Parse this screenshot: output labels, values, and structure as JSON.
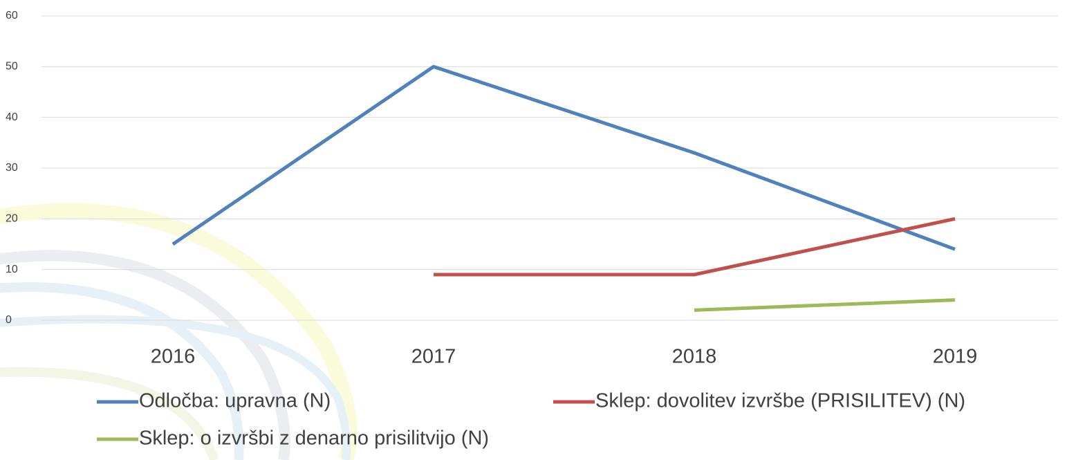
{
  "chart_data": {
    "type": "line",
    "categories": [
      "2016",
      "2017",
      "2018",
      "2019"
    ],
    "series": [
      {
        "name": "Odločba: upravna (N)",
        "color": "#4f81bd",
        "values": [
          15,
          50,
          33,
          14
        ]
      },
      {
        "name": "Sklep: dovolitev izvršbe (PRISILITEV) (N)",
        "color": "#c0504d",
        "values": [
          null,
          9,
          9,
          20
        ]
      },
      {
        "name": "Sklep: o izvršbi z denarno prisilitvijo (N)",
        "color": "#9bbb59",
        "values": [
          null,
          null,
          2,
          4
        ]
      }
    ],
    "ylim": [
      0,
      60
    ],
    "yticks": [
      0,
      10,
      20,
      30,
      40,
      50,
      60
    ],
    "grid": true,
    "legend": "bottom"
  }
}
